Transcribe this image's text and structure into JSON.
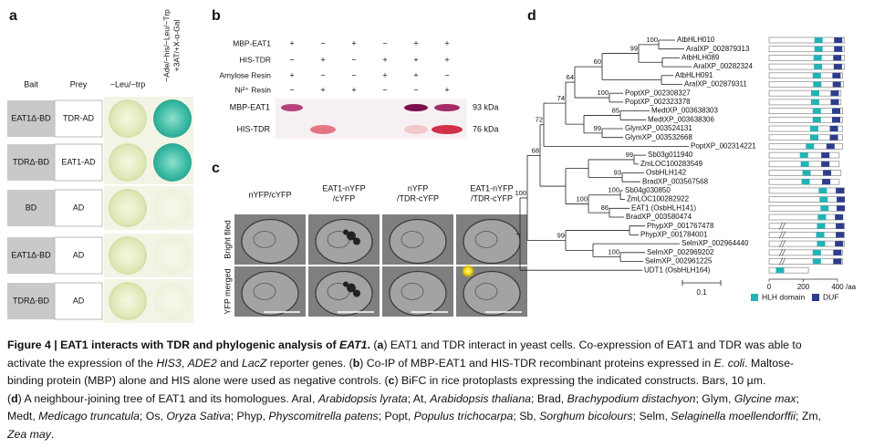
{
  "panel_a": {
    "label": "a",
    "headers": [
      "Bait",
      "Prey",
      "−Leu/−trp"
    ],
    "rotated_header": [
      "−Ade/−his/−Leu/−Trp",
      "+3AT/+X-α-Gal"
    ],
    "rows": [
      {
        "bait": "EAT1Δ-BD",
        "prey": "TDR-AD",
        "positive": true
      },
      {
        "bait": "TDRΔ-BD",
        "prey": "EAT1-AD",
        "positive": true
      },
      {
        "bait": "BD",
        "prey": "AD",
        "positive": false
      },
      {
        "bait": "EAT1Δ-BD",
        "prey": "AD",
        "positive": false
      },
      {
        "bait": "TDRΔ-BD",
        "prey": "AD",
        "positive": false
      }
    ]
  },
  "panel_b": {
    "label": "b",
    "rows": [
      {
        "name": "MBP-EAT1",
        "signs": [
          "+",
          "−",
          "+",
          "−",
          "+",
          "+"
        ]
      },
      {
        "name": "HIS-TDR",
        "signs": [
          "−",
          "+",
          "−",
          "+",
          "+",
          "+"
        ]
      },
      {
        "name": "Amylose Resin",
        "signs": [
          "+",
          "−",
          "−",
          "+",
          "+",
          "−"
        ]
      },
      {
        "name": "Ni²⁺ Resin",
        "signs": [
          "−",
          "+",
          "+",
          "−",
          "−",
          "+"
        ]
      }
    ],
    "blots": [
      {
        "name": "MBP-EAT1",
        "size": "93 kDa"
      },
      {
        "name": "HIS-TDR",
        "size": "76 kDa"
      }
    ]
  },
  "panel_c": {
    "label": "c",
    "columns": [
      [
        "nYFP/cYFP"
      ],
      [
        "EAT1-nYFP",
        "/cYFP"
      ],
      [
        "nYFP",
        "/TDR-cYFP"
      ],
      [
        "EAT1-nYFP",
        "/TDR-cYFP"
      ]
    ],
    "rows": [
      "Bright filed",
      "YFP merged"
    ]
  },
  "panel_d": {
    "label": "d",
    "leaves": [
      {
        "name": "AtbHLH010",
        "length": 440,
        "hlh": 265,
        "duf": 380
      },
      {
        "name": "AralXP_002879313",
        "length": 440,
        "hlh": 265,
        "duf": 380
      },
      {
        "name": "AtbHLH089",
        "length": 440,
        "hlh": 260,
        "duf": 375
      },
      {
        "name": "AralXP_00282324",
        "length": 440,
        "hlh": 262,
        "duf": 378
      },
      {
        "name": "AtbHLH091",
        "length": 430,
        "hlh": 255,
        "duf": 370
      },
      {
        "name": "AralXP_002879311",
        "length": 435,
        "hlh": 258,
        "duf": 372
      },
      {
        "name": "PoptXP_002308327",
        "length": 420,
        "hlh": 245,
        "duf": 360
      },
      {
        "name": "PoptXP_002323378",
        "length": 420,
        "hlh": 245,
        "duf": 360
      },
      {
        "name": "MedtXP_003638303",
        "length": 430,
        "hlh": 255,
        "duf": 368
      },
      {
        "name": "MedtXP_003638306",
        "length": 430,
        "hlh": 255,
        "duf": 368
      },
      {
        "name": "GlymXP_003524131",
        "length": 430,
        "hlh": 240,
        "duf": 355
      },
      {
        "name": "GlymXP_003532668",
        "length": 430,
        "hlh": 240,
        "duf": 355
      },
      {
        "name": "PoptXP_002314221",
        "length": 430,
        "hlh": 215,
        "duf": 335
      },
      {
        "name": "Sb03g011940",
        "length": 410,
        "hlh": 180,
        "duf": 305
      },
      {
        "name": "ZmLOC100283549",
        "length": 410,
        "hlh": 185,
        "duf": 305
      },
      {
        "name": "OsbHLH142",
        "length": 420,
        "hlh": 195,
        "duf": 315
      },
      {
        "name": "BradXP_003567568",
        "length": 410,
        "hlh": 190,
        "duf": 310
      },
      {
        "name": "Sb04g030850",
        "length": 440,
        "hlh": 290,
        "duf": 390
      },
      {
        "name": "ZmLOC100282922",
        "length": 440,
        "hlh": 295,
        "duf": 395
      },
      {
        "name": "EAT1 (OsbHLH141)",
        "length": 440,
        "hlh": 300,
        "duf": 395
      },
      {
        "name": "BradXP_003580474",
        "length": 430,
        "hlh": 285,
        "duf": 385
      },
      {
        "name": "PhypXP_001767478",
        "length": 440,
        "hlh": 280,
        "duf": 390,
        "break": true
      },
      {
        "name": "PhypXP_001784001",
        "length": 440,
        "hlh": 275,
        "duf": 390,
        "break": true
      },
      {
        "name": "SelmXP_002964440",
        "length": 440,
        "hlh": 280,
        "duf": 385,
        "break": true
      },
      {
        "name": "SelmXP_002969202",
        "length": 430,
        "hlh": 255,
        "duf": 375,
        "break": true
      },
      {
        "name": "SelmXP_002961225",
        "length": 430,
        "hlh": 255,
        "duf": 375,
        "break": true
      },
      {
        "name": "UDT1 (OsbHLH164)",
        "length": 230,
        "hlh": 40
      }
    ],
    "bootstrap": [
      100,
      99,
      60,
      100,
      64,
      85,
      99,
      74,
      72,
      99,
      93,
      100,
      86,
      100,
      68,
      99,
      100,
      100
    ],
    "axis": {
      "ticks": [
        0,
        200,
        400
      ],
      "unit": "/aa"
    },
    "scale": "0.1",
    "legend": [
      "HLH domain",
      "DUF"
    ],
    "colors": {
      "hlh": "#22b3b6",
      "duf": "#2d3d8c"
    }
  },
  "caption": [
    [
      {
        "t": "Figure 4 | EAT1 interacts with TDR and phylogenic analysis of ",
        "s": "b"
      },
      {
        "t": "EAT1",
        "s": "bi"
      },
      {
        "t": ".",
        "s": "b"
      },
      {
        "t": " ("
      },
      {
        "t": "a",
        "s": "b"
      },
      {
        "t": ") EAT1 and TDR interact in yeast cells. Co-expression of EAT1 and TDR was able to"
      }
    ],
    [
      {
        "t": "activate the expression of the "
      },
      {
        "t": "HIS3",
        "s": "i"
      },
      {
        "t": ", "
      },
      {
        "t": "ADE2",
        "s": "i"
      },
      {
        "t": " and "
      },
      {
        "t": "LacZ",
        "s": "i"
      },
      {
        "t": " reporter genes. ("
      },
      {
        "t": "b",
        "s": "b"
      },
      {
        "t": ") Co-IP of MBP-EAT1 and HIS-TDR recombinant proteins expressed in "
      },
      {
        "t": "E. coli",
        "s": "i"
      },
      {
        "t": ". Maltose-"
      }
    ],
    [
      {
        "t": "binding protein (MBP) alone and HIS alone were used as negative controls. ("
      },
      {
        "t": "c",
        "s": "b"
      },
      {
        "t": ") BiFC in rice protoplasts expressing the indicated constructs. Bars, 10 µm."
      }
    ],
    [
      {
        "t": "("
      },
      {
        "t": "d",
        "s": "b"
      },
      {
        "t": ") A neighbour-joining tree of EAT1 and its homologues. AraI, "
      },
      {
        "t": "Arabidopsis lyrata",
        "s": "i"
      },
      {
        "t": "; At, "
      },
      {
        "t": "Arabidopsis thaliana",
        "s": "i"
      },
      {
        "t": "; Brad, "
      },
      {
        "t": "Brachypodium distachyon",
        "s": "i"
      },
      {
        "t": "; Glym, "
      },
      {
        "t": "Glycine max",
        "s": "i"
      },
      {
        "t": ";"
      }
    ],
    [
      {
        "t": "Medt, "
      },
      {
        "t": "Medicago truncatula",
        "s": "i"
      },
      {
        "t": "; Os, "
      },
      {
        "t": "Oryza Sativa",
        "s": "i"
      },
      {
        "t": "; Phyp, "
      },
      {
        "t": "Physcomitrella patens",
        "s": "i"
      },
      {
        "t": "; Popt, "
      },
      {
        "t": "Populus trichocarpa",
        "s": "i"
      },
      {
        "t": "; Sb, "
      },
      {
        "t": "Sorghum bicolours",
        "s": "i"
      },
      {
        "t": "; Selm, "
      },
      {
        "t": "Selaginella moellendorffii",
        "s": "i"
      },
      {
        "t": "; Zm,"
      }
    ],
    [
      {
        "t": "Zea may",
        "s": "i"
      },
      {
        "t": "."
      }
    ]
  ]
}
